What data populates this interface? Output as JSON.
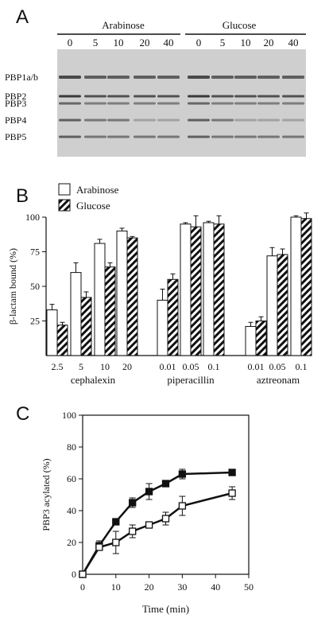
{
  "panels": {
    "a": {
      "label": "A",
      "groups": [
        "Arabinose",
        "Glucose"
      ],
      "lanes": [
        "0",
        "5",
        "10",
        "20",
        "40",
        "0",
        "5",
        "10",
        "20",
        "40"
      ],
      "bands": [
        "PBP1a/b",
        "PBP2",
        "PBP3",
        "PBP4",
        "PBP5"
      ]
    },
    "b": {
      "label": "B",
      "legend": [
        "Arabinose",
        "Glucose"
      ],
      "ylabel": "β-lactam bound (%)",
      "drugs": [
        "cephalexin",
        "piperacillin",
        "aztreonam"
      ]
    },
    "c": {
      "label": "C",
      "ylabel": "PBP3 acylated (%)",
      "xlabel": "Time (min)"
    }
  },
  "chart_data": [
    {
      "type": "bar",
      "categories": [
        "2.5",
        "5",
        "10",
        "20",
        "0.01",
        "0.05",
        "0.1",
        "0.01",
        "0.05",
        "0.1"
      ],
      "groups": [
        {
          "name": "cephalexin",
          "categories": [
            "2.5",
            "5",
            "10",
            "20"
          ]
        },
        {
          "name": "piperacillin",
          "categories": [
            "0.01",
            "0.05",
            "0.1"
          ]
        },
        {
          "name": "aztreonam",
          "categories": [
            "0.01",
            "0.05",
            "0.1"
          ]
        }
      ],
      "series": [
        {
          "name": "Arabinose",
          "pattern": "open",
          "values": [
            33,
            60,
            81,
            90,
            40,
            95,
            96,
            21,
            72,
            100
          ],
          "errors": [
            4,
            7,
            3,
            2,
            8,
            1,
            1,
            3,
            6,
            1
          ]
        },
        {
          "name": "Glucose",
          "pattern": "hatched",
          "values": [
            22,
            42,
            64,
            85,
            55,
            93,
            95,
            25,
            73,
            99
          ],
          "errors": [
            2,
            4,
            3,
            1,
            4,
            8,
            6,
            3,
            4,
            4
          ]
        }
      ],
      "ylabel": "β-lactam bound (%)",
      "yticks": [
        25,
        50,
        75,
        100
      ],
      "ylim": [
        0,
        100
      ],
      "legend_position": "top-left"
    },
    {
      "type": "line",
      "xlabel": "Time (min)",
      "ylabel": "PBP3 acylated (%)",
      "xlim": [
        0,
        50
      ],
      "ylim": [
        0,
        100
      ],
      "xticks": [
        0,
        10,
        20,
        30,
        40,
        50
      ],
      "yticks": [
        0,
        20,
        40,
        60,
        80,
        100
      ],
      "series": [
        {
          "marker": "filled-square",
          "x": [
            0,
            5,
            10,
            15,
            20,
            25,
            30,
            45
          ],
          "y": [
            0,
            18,
            33,
            45,
            52,
            57,
            63,
            64
          ],
          "errors": [
            0,
            3,
            2,
            3,
            5,
            2,
            3,
            1
          ]
        },
        {
          "marker": "open-square",
          "x": [
            0,
            5,
            10,
            15,
            20,
            25,
            30,
            45
          ],
          "y": [
            0,
            17,
            20,
            27,
            31,
            35,
            43,
            51
          ],
          "errors": [
            0,
            2,
            7,
            4,
            2,
            4,
            6,
            4
          ]
        }
      ]
    }
  ]
}
